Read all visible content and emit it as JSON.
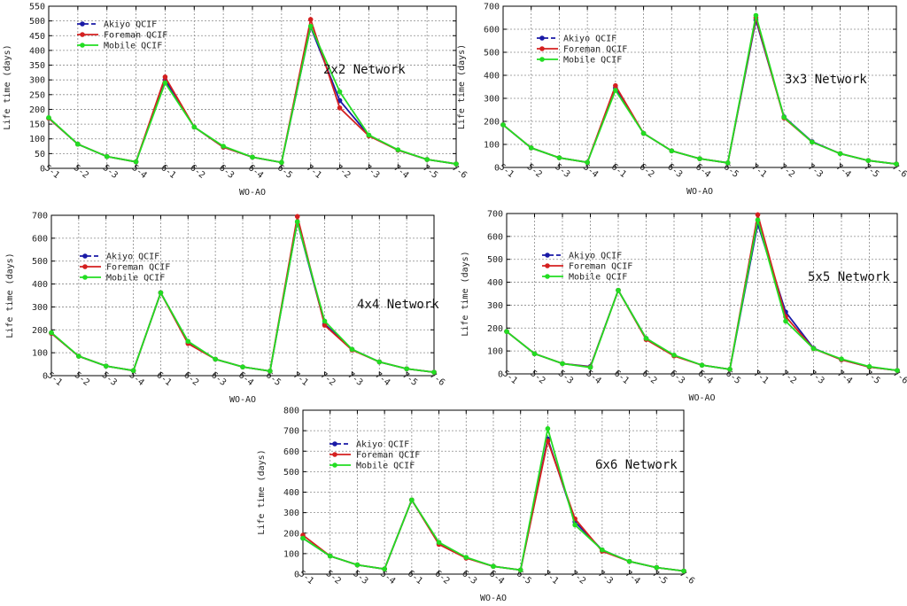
{
  "chart_data": [
    {
      "type": "line",
      "title": "2x2 Network",
      "xlabel": "WO-AO",
      "ylabel": "Life time (days)",
      "ylim": [
        0,
        550
      ],
      "yticks": [
        0,
        50,
        100,
        150,
        200,
        250,
        300,
        350,
        400,
        450,
        500,
        550
      ],
      "categories": [
        "5-1",
        "5-2",
        "5-3",
        "5-4",
        "6-1",
        "6-2",
        "6-3",
        "6-4",
        "6-5",
        "7-1",
        "7-2",
        "7-3",
        "7-4",
        "7-5",
        "7-6"
      ],
      "grid": true,
      "legend_position": "top-left",
      "series": [
        {
          "name": "Akiyo QCIF",
          "color": "#1a1aa6",
          "values": [
            170,
            82,
            40,
            22,
            300,
            140,
            72,
            38,
            20,
            480,
            230,
            112,
            62,
            30,
            15
          ]
        },
        {
          "name": "Foreman QCIF",
          "color": "#d42020",
          "values": [
            170,
            82,
            40,
            22,
            310,
            140,
            72,
            38,
            20,
            505,
            205,
            110,
            62,
            30,
            15
          ]
        },
        {
          "name": "Mobile QCIF",
          "color": "#22dd22",
          "values": [
            172,
            82,
            40,
            22,
            290,
            140,
            75,
            38,
            20,
            482,
            260,
            113,
            63,
            30,
            15
          ]
        }
      ]
    },
    {
      "type": "line",
      "title": "3x3 Network",
      "xlabel": "WO-AO",
      "ylabel": "Life time (days)",
      "ylim": [
        0,
        700
      ],
      "yticks": [
        0,
        100,
        200,
        300,
        400,
        500,
        600,
        700
      ],
      "categories": [
        "5-1",
        "5-2",
        "5-3",
        "5-4",
        "6-1",
        "6-2",
        "6-3",
        "6-4",
        "6-5",
        "7-1",
        "7-2",
        "7-3",
        "7-4",
        "7-5",
        "7-6"
      ],
      "grid": true,
      "legend_position": "top-left",
      "series": [
        {
          "name": "Akiyo QCIF",
          "color": "#1a1aa6",
          "values": [
            185,
            85,
            42,
            22,
            345,
            148,
            72,
            38,
            20,
            640,
            220,
            112,
            60,
            30,
            15
          ]
        },
        {
          "name": "Foreman QCIF",
          "color": "#d42020",
          "values": [
            185,
            85,
            42,
            22,
            355,
            148,
            72,
            38,
            20,
            650,
            215,
            110,
            60,
            30,
            15
          ]
        },
        {
          "name": "Mobile QCIF",
          "color": "#22dd22",
          "values": [
            185,
            85,
            42,
            22,
            335,
            148,
            72,
            38,
            20,
            660,
            218,
            110,
            60,
            30,
            15
          ]
        }
      ]
    },
    {
      "type": "line",
      "title": "4x4 Network",
      "xlabel": "WO-AO",
      "ylabel": "Life time (days)",
      "ylim": [
        0,
        700
      ],
      "yticks": [
        0,
        100,
        200,
        300,
        400,
        500,
        600,
        700
      ],
      "categories": [
        "5-1",
        "5-2",
        "5-3",
        "5-4",
        "6-1",
        "6-2",
        "6-3",
        "6-4",
        "6-5",
        "7-1",
        "7-2",
        "7-3",
        "7-4",
        "7-5",
        "7-6"
      ],
      "grid": true,
      "legend_position": "top-left",
      "series": [
        {
          "name": "Akiyo QCIF",
          "color": "#1a1aa6",
          "values": [
            185,
            85,
            42,
            22,
            362,
            148,
            72,
            38,
            20,
            672,
            225,
            115,
            60,
            30,
            15
          ]
        },
        {
          "name": "Foreman QCIF",
          "color": "#d42020",
          "values": [
            185,
            85,
            42,
            22,
            362,
            140,
            72,
            38,
            20,
            695,
            220,
            112,
            60,
            30,
            15
          ]
        },
        {
          "name": "Mobile QCIF",
          "color": "#22dd22",
          "values": [
            188,
            85,
            42,
            22,
            362,
            150,
            72,
            38,
            20,
            672,
            238,
            115,
            60,
            30,
            15
          ]
        }
      ]
    },
    {
      "type": "line",
      "title": "5x5 Network",
      "xlabel": "WO-AO",
      "ylabel": "Life time (days)",
      "ylim": [
        0,
        700
      ],
      "yticks": [
        0,
        100,
        200,
        300,
        400,
        500,
        600,
        700
      ],
      "categories": [
        "5-1",
        "5-2",
        "5-3",
        "5-4",
        "6-1",
        "6-2",
        "6-3",
        "6-4",
        "6-5",
        "7-1",
        "7-2",
        "7-3",
        "7-4",
        "7-5",
        "7-6"
      ],
      "grid": true,
      "legend_position": "top-left",
      "series": [
        {
          "name": "Akiyo QCIF",
          "color": "#1a1aa6",
          "values": [
            185,
            88,
            45,
            32,
            365,
            155,
            80,
            38,
            20,
            655,
            270,
            112,
            62,
            30,
            15
          ]
        },
        {
          "name": "Foreman QCIF",
          "color": "#d42020",
          "values": [
            185,
            88,
            45,
            30,
            365,
            150,
            78,
            38,
            20,
            695,
            250,
            110,
            62,
            30,
            15
          ]
        },
        {
          "name": "Mobile QCIF",
          "color": "#22dd22",
          "values": [
            185,
            88,
            45,
            28,
            365,
            155,
            82,
            38,
            20,
            672,
            230,
            110,
            65,
            32,
            15
          ]
        }
      ]
    },
    {
      "type": "line",
      "title": "6x6 Network",
      "xlabel": "WO-AO",
      "ylabel": "Life time (days)",
      "ylim": [
        0,
        800
      ],
      "yticks": [
        0,
        100,
        200,
        300,
        400,
        500,
        600,
        700,
        800
      ],
      "categories": [
        "5-1",
        "5-2",
        "5-3",
        "5-4",
        "6-1",
        "6-2",
        "6-3",
        "6-4",
        "6-5",
        "7-1",
        "7-2",
        "7-3",
        "7-4",
        "7-5",
        "7-6"
      ],
      "grid": true,
      "legend_position": "top-left",
      "series": [
        {
          "name": "Akiyo QCIF",
          "color": "#1a1aa6",
          "values": [
            175,
            88,
            45,
            25,
            362,
            150,
            80,
            38,
            20,
            660,
            255,
            118,
            62,
            32,
            15
          ]
        },
        {
          "name": "Foreman QCIF",
          "color": "#d42020",
          "values": [
            190,
            88,
            45,
            25,
            362,
            145,
            78,
            38,
            20,
            650,
            270,
            112,
            62,
            32,
            15
          ]
        },
        {
          "name": "Mobile QCIF",
          "color": "#22dd22",
          "values": [
            175,
            88,
            45,
            25,
            362,
            155,
            82,
            38,
            20,
            710,
            240,
            118,
            62,
            32,
            15
          ]
        }
      ]
    }
  ]
}
